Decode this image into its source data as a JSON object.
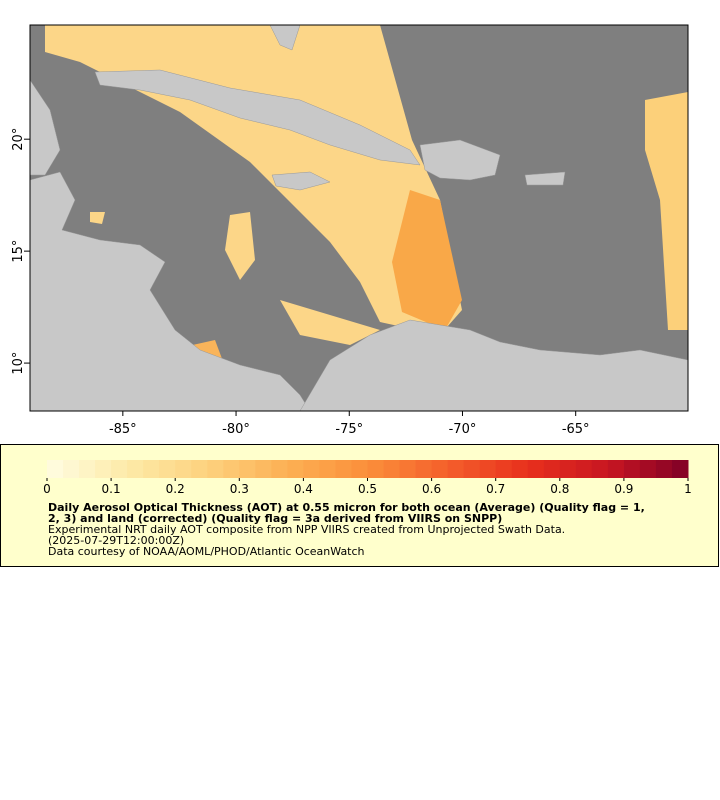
{
  "map": {
    "xlim": [
      -89.1,
      -60.04
    ],
    "ylim": [
      7.86,
      25.1
    ],
    "xticks": [
      {
        "value": -85,
        "label": "-85°"
      },
      {
        "value": -80,
        "label": "-80°"
      },
      {
        "value": -75,
        "label": "-75°"
      },
      {
        "value": -70,
        "label": "-70°"
      },
      {
        "value": -65,
        "label": "-65°"
      }
    ],
    "yticks": [
      {
        "value": 10,
        "label": "10°"
      },
      {
        "value": 15,
        "label": "15°"
      },
      {
        "value": 20,
        "label": "20°"
      }
    ],
    "colorbar": {
      "lim": [
        0,
        1
      ],
      "ticks": [
        0,
        0.1,
        0.2,
        0.3,
        0.4,
        0.5,
        0.6,
        0.7,
        0.8,
        0.9,
        1
      ],
      "stops": [
        "#fffde2",
        "#fdeaa8",
        "#fdd17e",
        "#fcb054",
        "#fb8f3a",
        "#f45f2b",
        "#e8301d",
        "#c81621",
        "#800026"
      ],
      "cells": 40
    },
    "caption": [
      "Daily Aerosol Optical Thickness (AOT) at 0.55 micron for both ocean (Average) (Quality flag = 1,",
      "2, 3) and land (corrected) (Quality flag = 3a derived from VIIRS on SNPP)",
      "Experimental NRT daily AOT composite from NPP VIIRS created from Unprojected Swath Data.",
      "(2025-07-29T12:00:00Z)",
      "Data courtesy of NOAA/AOML/PHOD/Atlantic OceanWatch"
    ]
  }
}
